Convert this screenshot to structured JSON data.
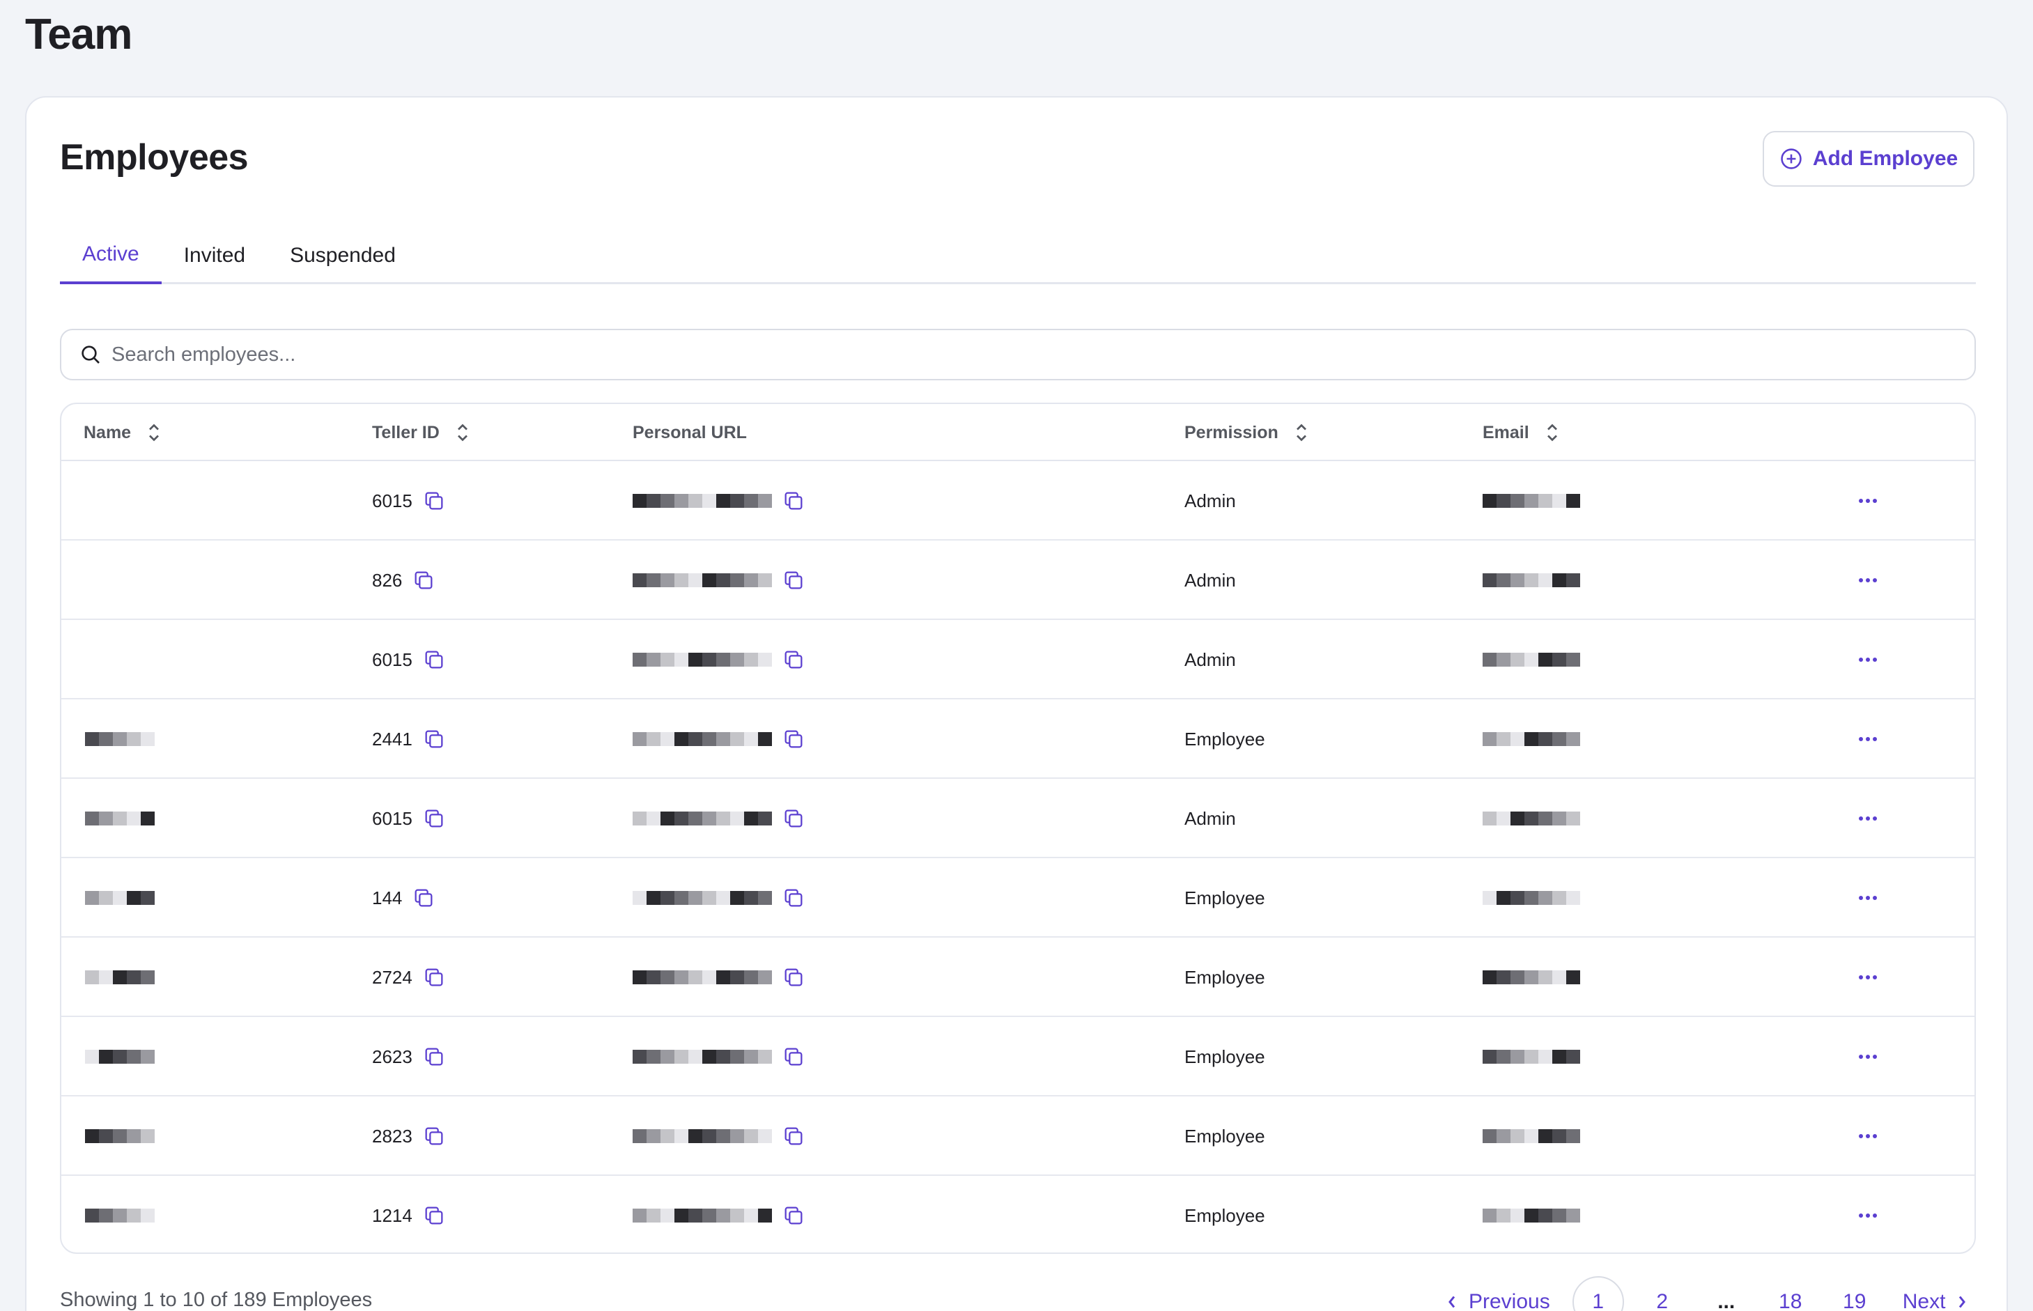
{
  "page": {
    "title": "Team"
  },
  "card": {
    "title": "Employees",
    "add_button_label": "Add Employee"
  },
  "tabs": [
    {
      "label": "Active",
      "active": true
    },
    {
      "label": "Invited",
      "active": false
    },
    {
      "label": "Suspended",
      "active": false
    }
  ],
  "search": {
    "placeholder": "Search employees...",
    "value": ""
  },
  "table": {
    "columns": [
      {
        "label": "Name",
        "sortable": true
      },
      {
        "label": "Teller ID",
        "sortable": true
      },
      {
        "label": "Personal URL",
        "sortable": false
      },
      {
        "label": "Permission",
        "sortable": true
      },
      {
        "label": "Email",
        "sortable": true
      }
    ],
    "rows": [
      {
        "teller_id": "6015",
        "permission": "Admin"
      },
      {
        "teller_id": "826",
        "permission": "Admin"
      },
      {
        "teller_id": "6015",
        "permission": "Admin"
      },
      {
        "teller_id": "2441",
        "permission": "Employee"
      },
      {
        "teller_id": "6015",
        "permission": "Admin"
      },
      {
        "teller_id": "144",
        "permission": "Employee"
      },
      {
        "teller_id": "2724",
        "permission": "Employee"
      },
      {
        "teller_id": "2623",
        "permission": "Employee"
      },
      {
        "teller_id": "2823",
        "permission": "Employee"
      },
      {
        "teller_id": "1214",
        "permission": "Employee"
      }
    ]
  },
  "footer": {
    "summary": "Showing 1 to 10 of 189 Employees",
    "previous_label": "Previous",
    "next_label": "Next",
    "pages": [
      "1",
      "2",
      "...",
      "18",
      "19"
    ],
    "current_page": "1"
  },
  "colors": {
    "accent": "#5b3fd0",
    "background": "#f2f4f8",
    "border": "#e3e6ee"
  },
  "icons": {
    "add": "plus-circle-icon",
    "search": "search-icon",
    "sort": "sort-icon",
    "copy": "copy-icon",
    "more": "more-icon",
    "prev": "chevron-left-icon",
    "next": "chevron-right-icon"
  }
}
